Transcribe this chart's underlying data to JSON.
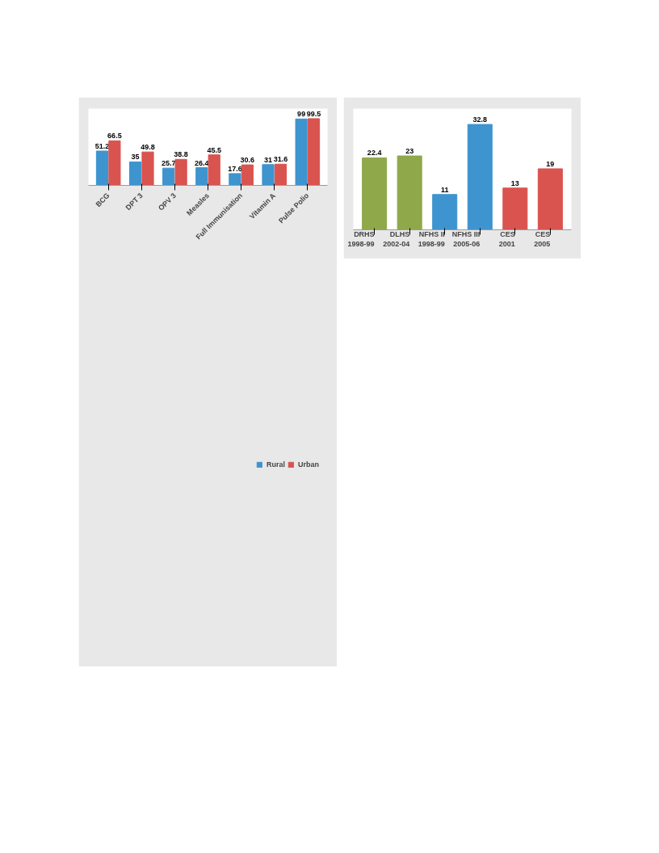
{
  "chart_data": [
    {
      "type": "bar",
      "categories": [
        "BCG",
        "DPT 3",
        "OPV 3",
        "Measles",
        "Full Immunisation",
        "Vitamin A",
        "Pulse Polio"
      ],
      "series": [
        {
          "name": "Rural",
          "color": "#3d94cf",
          "values": [
            51.2,
            35,
            25.7,
            26.4,
            17.6,
            31,
            99
          ]
        },
        {
          "name": "Urban",
          "color": "#d9534f",
          "values": [
            66.5,
            49.8,
            38.8,
            45.5,
            30.6,
            31.6,
            99.5
          ]
        }
      ],
      "data_labels": true,
      "legend": "bottom",
      "tick_labels": "x",
      "grid": false
    },
    {
      "type": "bar",
      "categories": [
        "DRHS 1998-99",
        "DLHS 2002-04",
        "NFHS II 1998-99",
        "NFHS III 2005-06",
        "CES 2001",
        "CES 2005"
      ],
      "values": [
        22.4,
        23,
        11,
        32.8,
        13,
        19
      ],
      "colors": [
        "#8fa84a",
        "#8fa84a",
        "#3d94cf",
        "#3d94cf",
        "#d9534f",
        "#d9534f"
      ],
      "data_labels": true,
      "tick_labels": "x",
      "grid": false
    }
  ]
}
